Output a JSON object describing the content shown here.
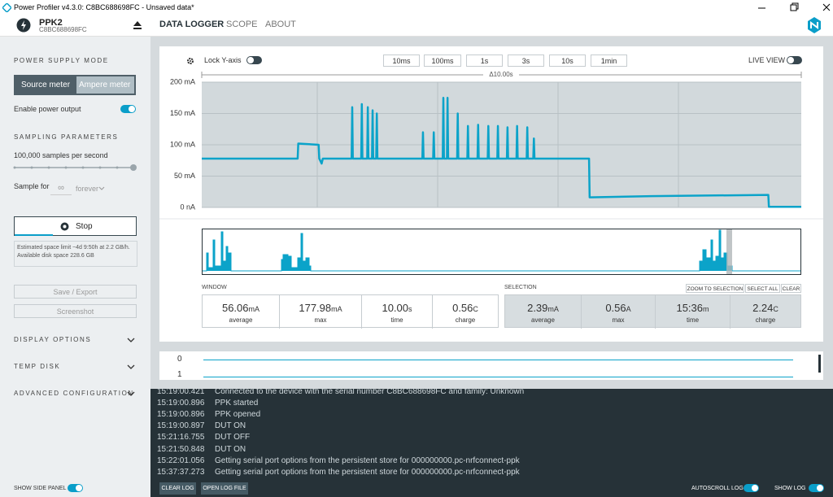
{
  "title_bar": {
    "title": "Power Profiler v4.3.0: C8BC688698FC - Unsaved data*"
  },
  "header": {
    "device": "PPK2",
    "serial": "C8BC688698FC",
    "nav": [
      "DATA LOGGER",
      "SCOPE",
      "ABOUT"
    ]
  },
  "sidebar": {
    "power_supply_mode": "POWER SUPPLY MODE",
    "modes": [
      "Source meter",
      "Ampere meter"
    ],
    "enable_power": "Enable power output",
    "sampling_parameters": "SAMPLING PARAMETERS",
    "rate": "100,000 samples per second",
    "sample_for": "Sample for",
    "duration": "∞",
    "duration_unit": "forever",
    "stop": "Stop",
    "estimate": "Estimated space limit ~4d 9:50h at 2.2 GB/h. Available disk space 228.6 GB",
    "save": "Save / Export",
    "screenshot": "Screenshot",
    "sections": [
      "DISPLAY OPTIONS",
      "TEMP DISK",
      "ADVANCED CONFIGURATION"
    ],
    "show_side_panel": "SHOW SIDE PANEL"
  },
  "toolbar": {
    "lock": "Lock Y-axis",
    "windows": [
      "10ms",
      "100ms",
      "1s",
      "3s",
      "10s",
      "1min"
    ],
    "live_view": "LIVE VIEW"
  },
  "chart_data": {
    "type": "line",
    "span_label": "Δ10.00s",
    "x": [
      0,
      1.6,
      1.61,
      1.95,
      1.96,
      2.0,
      2.02,
      2.5,
      2.51,
      2.52,
      2.66,
      2.67,
      2.68,
      2.76,
      2.77,
      2.78,
      2.84,
      2.85,
      2.86,
      2.91,
      2.92,
      2.93,
      3.68,
      3.69,
      3.7,
      3.86,
      3.87,
      3.88,
      4.02,
      4.03,
      4.04,
      4.09,
      4.1,
      4.11,
      4.26,
      4.27,
      4.28,
      4.43,
      4.44,
      4.45,
      4.6,
      4.61,
      4.62,
      4.77,
      4.78,
      4.79,
      4.93,
      4.94,
      4.95,
      5.09,
      5.1,
      5.11,
      5.25,
      5.26,
      5.27,
      5.42,
      5.43,
      5.44,
      5.53,
      5.54,
      5.55,
      6.46,
      6.47,
      7.5,
      9.45,
      9.46,
      10
    ],
    "series": [
      {
        "color": "#0ba3c9",
        "values": [
          78,
          78,
          102,
          100,
          78,
          70,
          78,
          78,
          160,
          78,
          78,
          165,
          78,
          78,
          160,
          78,
          78,
          155,
          78,
          78,
          150,
          78,
          78,
          120,
          78,
          78,
          120,
          78,
          78,
          175,
          78,
          78,
          175,
          78,
          78,
          150,
          78,
          78,
          130,
          78,
          78,
          132,
          78,
          78,
          130,
          78,
          78,
          130,
          78,
          78,
          128,
          78,
          78,
          130,
          78,
          78,
          128,
          78,
          78,
          110,
          78,
          78,
          16,
          18,
          20,
          1,
          1
        ]
      }
    ],
    "xlim": [
      0,
      10
    ],
    "ylim": [
      0,
      200
    ],
    "yticks": [
      {
        "value": 0,
        "label": "0 nA"
      },
      {
        "value": 50,
        "label": "50 mA"
      },
      {
        "value": 100,
        "label": "100 mA"
      },
      {
        "value": 150,
        "label": "150 mA"
      },
      {
        "value": 200,
        "label": "200 mA"
      }
    ],
    "grid": true
  },
  "window_stats": {
    "label": "WINDOW",
    "cells": [
      {
        "value": "56.06",
        "unit": "mA",
        "label": "average"
      },
      {
        "value": "177.98",
        "unit": "mA",
        "label": "max"
      },
      {
        "value": "10.00",
        "unit": "s",
        "label": "time"
      },
      {
        "value": "0.56",
        "unit": "C",
        "label": "charge"
      }
    ]
  },
  "selection_stats": {
    "label": "SELECTION",
    "buttons": [
      "ZOOM TO SELECTION",
      "SELECT ALL",
      "CLEAR"
    ],
    "cells": [
      {
        "value": "2.39",
        "unit": "mA",
        "label": "average"
      },
      {
        "value": "0.56",
        "unit": "A",
        "label": "max"
      },
      {
        "value": "15:36",
        "unit": "m",
        "label": "time"
      },
      {
        "value": "2.24",
        "unit": "C",
        "label": "charge"
      }
    ]
  },
  "digital_channels": [
    "0",
    "1"
  ],
  "log": [
    [
      "15:19:00.421",
      "Connected to the device with the serial number C8BC688698FC and family: Unknown"
    ],
    [
      "15:19:00.896",
      "PPK started"
    ],
    [
      "15:19:00.896",
      "PPK opened"
    ],
    [
      "15:19:00.897",
      "DUT ON"
    ],
    [
      "15:21:16.755",
      "DUT OFF"
    ],
    [
      "15:21:50.848",
      "DUT ON"
    ],
    [
      "15:22:01.056",
      "Getting serial port options from the persistent store for 000000000.pc-nrfconnect-ppk"
    ],
    [
      "15:37:37.273",
      "Getting serial port options from the persistent store for 000000000.pc-nrfconnect-ppk"
    ]
  ],
  "bottom_bar": {
    "clear_log": "CLEAR LOG",
    "open_log": "OPEN LOG FILE",
    "autoscroll": "AUTOSCROLL LOG",
    "show_log": "SHOW LOG"
  }
}
